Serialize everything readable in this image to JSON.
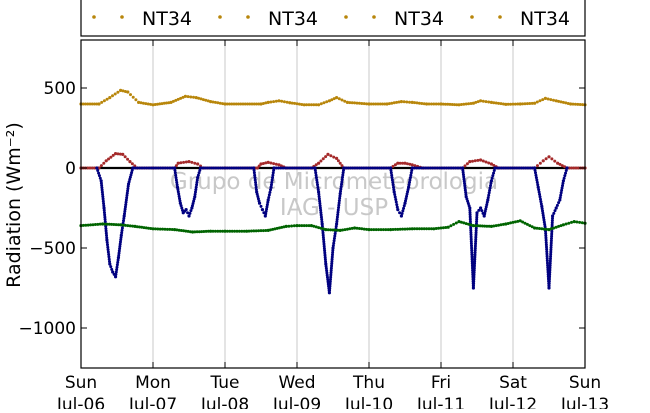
{
  "chart_data": {
    "type": "scatter",
    "ylabel": "Radiation (Wm⁻²)",
    "ylim": [
      -1250,
      800
    ],
    "xlim": [
      0,
      7
    ],
    "yticks": [
      500,
      0,
      -500,
      -1000
    ],
    "ytick_labels": [
      "500",
      "0",
      "−500",
      "−1000"
    ],
    "xticks": [
      0,
      1,
      2,
      3,
      4,
      5,
      6,
      7
    ],
    "xtick_labels": [
      [
        "Sun",
        "Jul-06"
      ],
      [
        "Mon",
        "Jul-07"
      ],
      [
        "Tue",
        "Jul-08"
      ],
      [
        "Wed",
        "Jul-09"
      ],
      [
        "Thu",
        "Jul-10"
      ],
      [
        "Fri",
        "Jul-11"
      ],
      [
        "Sat",
        "Jul-12"
      ],
      [
        "Sun",
        "Jul-13"
      ]
    ],
    "grid": "vertical",
    "legend_placement": "top",
    "legend": [
      "NT34",
      "NT34",
      "NT34",
      "NT34"
    ],
    "watermark": [
      "Grupo de Micrometeorologia",
      "IAG - USP"
    ],
    "zero_line": 0,
    "series": [
      {
        "color": "#b8860b",
        "points": [
          [
            0.0,
            400
          ],
          [
            0.25,
            400
          ],
          [
            0.4,
            440
          ],
          [
            0.55,
            485
          ],
          [
            0.65,
            475
          ],
          [
            0.8,
            410
          ],
          [
            1.0,
            395
          ],
          [
            1.25,
            410
          ],
          [
            1.45,
            448
          ],
          [
            1.6,
            440
          ],
          [
            1.8,
            415
          ],
          [
            2.0,
            400
          ],
          [
            2.5,
            400
          ],
          [
            2.6,
            410
          ],
          [
            2.75,
            420
          ],
          [
            2.9,
            408
          ],
          [
            3.1,
            395
          ],
          [
            3.3,
            395
          ],
          [
            3.45,
            420
          ],
          [
            3.55,
            440
          ],
          [
            3.7,
            410
          ],
          [
            4.0,
            400
          ],
          [
            4.25,
            400
          ],
          [
            4.45,
            415
          ],
          [
            4.6,
            410
          ],
          [
            4.8,
            400
          ],
          [
            5.0,
            400
          ],
          [
            5.25,
            395
          ],
          [
            5.45,
            405
          ],
          [
            5.55,
            420
          ],
          [
            5.7,
            410
          ],
          [
            5.9,
            398
          ],
          [
            6.1,
            400
          ],
          [
            6.3,
            405
          ],
          [
            6.45,
            435
          ],
          [
            6.6,
            420
          ],
          [
            6.8,
            400
          ],
          [
            7.0,
            395
          ]
        ]
      },
      {
        "color": "#a52a2a",
        "points": [
          [
            0.0,
            0
          ],
          [
            0.25,
            0
          ],
          [
            0.35,
            45
          ],
          [
            0.48,
            90
          ],
          [
            0.58,
            85
          ],
          [
            0.68,
            40
          ],
          [
            0.78,
            0
          ],
          [
            1.0,
            0
          ],
          [
            1.3,
            0
          ],
          [
            1.35,
            30
          ],
          [
            1.5,
            40
          ],
          [
            1.62,
            25
          ],
          [
            1.7,
            0
          ],
          [
            2.0,
            0
          ],
          [
            2.45,
            0
          ],
          [
            2.5,
            25
          ],
          [
            2.6,
            35
          ],
          [
            2.75,
            20
          ],
          [
            2.85,
            0
          ],
          [
            3.2,
            0
          ],
          [
            3.3,
            30
          ],
          [
            3.43,
            85
          ],
          [
            3.55,
            60
          ],
          [
            3.65,
            0
          ],
          [
            4.3,
            0
          ],
          [
            4.4,
            30
          ],
          [
            4.5,
            30
          ],
          [
            4.6,
            20
          ],
          [
            4.75,
            0
          ],
          [
            5.3,
            0
          ],
          [
            5.4,
            40
          ],
          [
            5.55,
            50
          ],
          [
            5.7,
            25
          ],
          [
            5.8,
            0
          ],
          [
            6.3,
            0
          ],
          [
            6.42,
            45
          ],
          [
            6.5,
            70
          ],
          [
            6.62,
            30
          ],
          [
            6.75,
            0
          ],
          [
            7.0,
            0
          ]
        ]
      },
      {
        "color": "#000080",
        "points": [
          [
            0.22,
            0
          ],
          [
            0.28,
            -80
          ],
          [
            0.32,
            -250
          ],
          [
            0.36,
            -450
          ],
          [
            0.4,
            -600
          ],
          [
            0.44,
            -650
          ],
          [
            0.48,
            -680
          ],
          [
            0.52,
            -560
          ],
          [
            0.56,
            -420
          ],
          [
            0.6,
            -300
          ],
          [
            0.66,
            -100
          ],
          [
            0.72,
            0
          ],
          [
            1.3,
            0
          ],
          [
            1.34,
            -120
          ],
          [
            1.38,
            -220
          ],
          [
            1.42,
            -280
          ],
          [
            1.46,
            -260
          ],
          [
            1.5,
            -300
          ],
          [
            1.54,
            -250
          ],
          [
            1.58,
            -180
          ],
          [
            1.62,
            -60
          ],
          [
            1.66,
            0
          ],
          [
            2.4,
            0
          ],
          [
            2.44,
            -150
          ],
          [
            2.48,
            -220
          ],
          [
            2.52,
            -260
          ],
          [
            2.56,
            -300
          ],
          [
            2.6,
            -200
          ],
          [
            2.64,
            -120
          ],
          [
            2.68,
            0
          ],
          [
            3.25,
            0
          ],
          [
            3.3,
            -150
          ],
          [
            3.35,
            -350
          ],
          [
            3.4,
            -600
          ],
          [
            3.45,
            -780
          ],
          [
            3.5,
            -500
          ],
          [
            3.55,
            -350
          ],
          [
            3.6,
            -160
          ],
          [
            3.65,
            0
          ],
          [
            4.3,
            0
          ],
          [
            4.35,
            -150
          ],
          [
            4.4,
            -260
          ],
          [
            4.45,
            -300
          ],
          [
            4.5,
            -220
          ],
          [
            4.55,
            -120
          ],
          [
            4.6,
            0
          ],
          [
            5.3,
            0
          ],
          [
            5.35,
            -180
          ],
          [
            5.4,
            -250
          ],
          [
            5.45,
            -750
          ],
          [
            5.5,
            -280
          ],
          [
            5.55,
            -250
          ],
          [
            5.6,
            -300
          ],
          [
            5.65,
            -200
          ],
          [
            5.7,
            -80
          ],
          [
            5.75,
            0
          ],
          [
            6.3,
            0
          ],
          [
            6.35,
            -120
          ],
          [
            6.4,
            -240
          ],
          [
            6.45,
            -380
          ],
          [
            6.5,
            -750
          ],
          [
            6.55,
            -300
          ],
          [
            6.6,
            -250
          ],
          [
            6.65,
            -200
          ],
          [
            6.7,
            -80
          ],
          [
            6.75,
            0
          ]
        ]
      },
      {
        "color": "#006400",
        "points": [
          [
            0.0,
            -360
          ],
          [
            0.3,
            -350
          ],
          [
            0.55,
            -355
          ],
          [
            0.75,
            -365
          ],
          [
            1.0,
            -380
          ],
          [
            1.3,
            -385
          ],
          [
            1.55,
            -400
          ],
          [
            1.8,
            -395
          ],
          [
            2.0,
            -395
          ],
          [
            2.3,
            -395
          ],
          [
            2.6,
            -390
          ],
          [
            2.85,
            -365
          ],
          [
            3.0,
            -360
          ],
          [
            3.2,
            -360
          ],
          [
            3.4,
            -385
          ],
          [
            3.6,
            -390
          ],
          [
            3.8,
            -375
          ],
          [
            4.0,
            -385
          ],
          [
            4.3,
            -385
          ],
          [
            4.6,
            -380
          ],
          [
            4.9,
            -380
          ],
          [
            5.1,
            -370
          ],
          [
            5.25,
            -335
          ],
          [
            5.45,
            -360
          ],
          [
            5.7,
            -365
          ],
          [
            5.9,
            -350
          ],
          [
            6.1,
            -330
          ],
          [
            6.3,
            -375
          ],
          [
            6.5,
            -385
          ],
          [
            6.7,
            -355
          ],
          [
            6.85,
            -335
          ],
          [
            7.0,
            -345
          ]
        ]
      }
    ]
  }
}
